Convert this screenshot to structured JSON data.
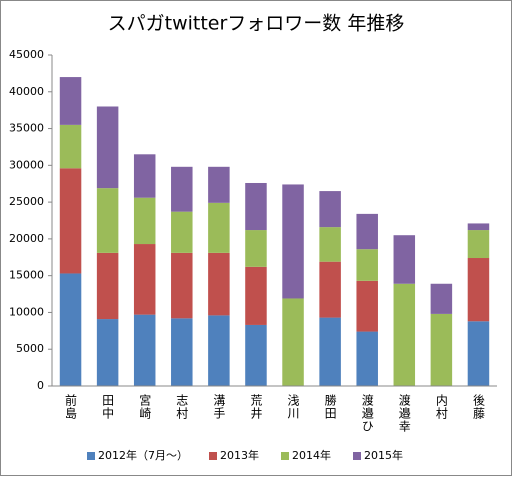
{
  "chart_data": {
    "type": "stacked_bar",
    "title": "スパガtwitterフォロワー数 年推移",
    "categories": [
      "前島",
      "田中",
      "宮崎",
      "志村",
      "溝手",
      "荒井",
      "浅川",
      "勝田",
      "渡邉ひ",
      "渡邉幸",
      "内村",
      "後藤"
    ],
    "series": [
      {
        "name": "2012年（7月～）",
        "color": "#4f81bd",
        "values": [
          15300,
          9100,
          9700,
          9200,
          9600,
          8300,
          0,
          9300,
          7400,
          0,
          0,
          8800
        ]
      },
      {
        "name": "2013年",
        "color": "#c0504d",
        "values": [
          14300,
          9000,
          9600,
          8900,
          8500,
          7900,
          0,
          7600,
          6900,
          0,
          0,
          8600
        ]
      },
      {
        "name": "2014年",
        "color": "#9bbb59",
        "values": [
          5900,
          8800,
          6300,
          5600,
          6800,
          5000,
          11900,
          4700,
          4300,
          13900,
          9800,
          3800
        ]
      },
      {
        "name": "2015年",
        "color": "#8064a2",
        "values": [
          6500,
          11100,
          5900,
          6100,
          4900,
          6400,
          15500,
          4900,
          4800,
          6600,
          4100,
          900
        ]
      }
    ],
    "ylim": [
      0,
      45000
    ],
    "yticks": [
      0,
      5000,
      10000,
      15000,
      20000,
      25000,
      30000,
      35000,
      40000,
      45000
    ],
    "grid": false,
    "legend": "bottom"
  }
}
